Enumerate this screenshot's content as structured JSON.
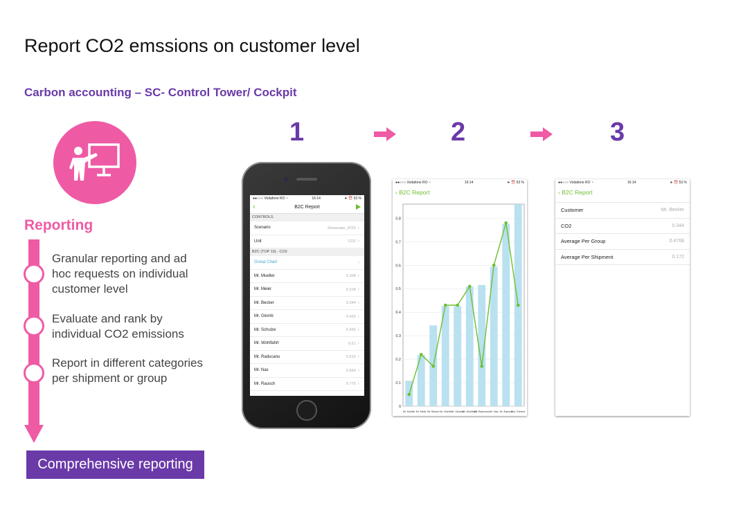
{
  "title": "Report CO2 emssions on customer level",
  "subtitle": "Carbon accounting – SC- Control Tower/ Cockpit",
  "reporting_label": "Reporting",
  "bullets": [
    "Granular reporting and ad hoc requests on individual customer level",
    "Evaluate and rank by individual CO2 emissions",
    "Report in different categories per shipment or group"
  ],
  "cta_label": "Comprehensive reporting",
  "steps": [
    "1",
    "2",
    "3"
  ],
  "colors": {
    "pink": "#ef5aa5",
    "purple": "#6a3aa8",
    "green": "#6cbf2f",
    "bar": "#b9e1f0"
  },
  "icons": {
    "presentation": "presenter-icon"
  },
  "screen1": {
    "status": {
      "carrier": "●●○○○ Vodafone RO ◔",
      "time": "16:14",
      "battery": "➤ ⏰ 53 %"
    },
    "nav_title": "B2C Report",
    "controls_header": "CONTROLS",
    "controls": [
      {
        "label": "Scenario",
        "value": "Showcase_2015"
      },
      {
        "label": "Unit",
        "value": "CO2"
      }
    ],
    "top_header": "B2C (TOP 10) - CO2",
    "group_chart": "Group Chart",
    "rows": [
      {
        "label": "Mr. Mueller",
        "value": "0.108"
      },
      {
        "label": "Mr. Meier",
        "value": "0.218"
      },
      {
        "label": "Mr. Becker",
        "value": "0.344"
      },
      {
        "label": "Mr. Glomb",
        "value": "0.426"
      },
      {
        "label": "Mr. Schulze",
        "value": "0.426"
      },
      {
        "label": "Mr. Wohlfahrt",
        "value": "0.51"
      },
      {
        "label": "Mr. Raducanu",
        "value": "0.516"
      },
      {
        "label": "Mr. Nas",
        "value": "0.594"
      },
      {
        "label": "Mr. Rausch",
        "value": "0.776"
      }
    ]
  },
  "screen2": {
    "status": {
      "carrier": "●●○○○ Vodafone RO ◔",
      "time": "16:14",
      "battery": "➤ ⏰ 53 %"
    },
    "back_label": "B2C Report",
    "chart_data": {
      "type": "bar",
      "categories": [
        "Mr. Mueller",
        "Mr. Meier",
        "Mr. Becker",
        "Mr. Glomb",
        "Mr. Schulze",
        "Mr. Wohlfahrt",
        "Mr. Raducanu",
        "Mr. Nas",
        "Mr. Rausch",
        "Mrs. Pomme"
      ],
      "tick_labels": [
        "Mr. Mueller",
        "Mr. Meier",
        "Mr. Becker",
        "Mr. Glomb",
        "Mr. Schulze",
        "Mr. Wohlfahrt",
        "Mr. Raducanu",
        "Mr. Nas",
        "Mr. Rausch",
        "Mrs. Pomme"
      ],
      "series": [
        {
          "type": "bar",
          "values": [
            0.108,
            0.218,
            0.344,
            0.426,
            0.426,
            0.51,
            0.516,
            0.594,
            0.776,
            0.86
          ]
        },
        {
          "type": "line",
          "values": [
            0.05,
            0.22,
            0.17,
            0.43,
            0.43,
            0.51,
            0.17,
            0.6,
            0.78,
            0.43
          ]
        }
      ],
      "yticks": [
        "0",
        "0.1",
        "0.2",
        "0.3",
        "0.4",
        "0.5",
        "0.6",
        "0.7",
        "0.8"
      ],
      "ylim": [
        0,
        0.86
      ],
      "grid": true
    }
  },
  "screen3": {
    "status": {
      "carrier": "●●○○○ Vodafone RO ◔",
      "time": "16:14",
      "battery": "➤ ⏰ 53 %"
    },
    "back_label": "B2C Report",
    "rows": [
      {
        "label": "Customer",
        "value": "Mr. Becker"
      },
      {
        "label": "CO2",
        "value": "0.344"
      },
      {
        "label": "Average Per Group",
        "value": "0.4768"
      },
      {
        "label": "Average Per Shipment",
        "value": "0.172"
      }
    ]
  }
}
